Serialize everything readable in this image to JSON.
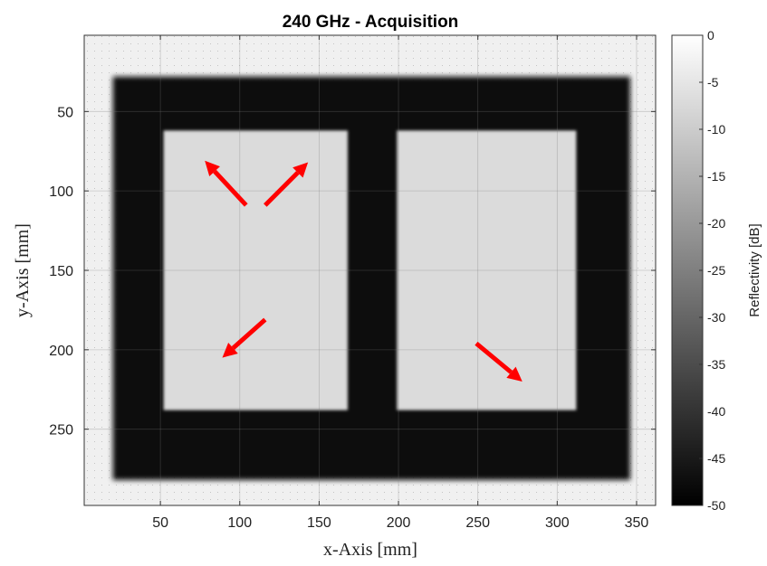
{
  "chart_data": {
    "type": "heatmap",
    "title": "240 GHz - Acquisition",
    "xlabel": "x-Axis [mm]",
    "ylabel": "y-Axis [mm]",
    "xlim": [
      2,
      362
    ],
    "ylim": [
      298,
      2
    ],
    "y_reversed": true,
    "xticks": [
      50,
      100,
      150,
      200,
      250,
      300,
      350
    ],
    "yticks": [
      50,
      100,
      150,
      200,
      250
    ],
    "grid": true,
    "colormap": "gray",
    "colorbar": {
      "label": "Reflectivity [dB]",
      "range": [
        -50,
        0
      ],
      "ticks": [
        0,
        -5,
        -10,
        -15,
        -20,
        -25,
        -30,
        -35,
        -40,
        -45,
        -50
      ]
    },
    "background_level_db": -3,
    "regions": [
      {
        "name": "outer frame",
        "x": [
          20,
          346
        ],
        "y": [
          28,
          282
        ],
        "level_db": -47
      },
      {
        "name": "left opening",
        "x": [
          52,
          168
        ],
        "y": [
          62,
          238
        ],
        "level_db": -7
      },
      {
        "name": "right opening",
        "x": [
          199,
          312
        ],
        "y": [
          62,
          238
        ],
        "level_db": -7
      }
    ],
    "annotations": [
      {
        "type": "arrow",
        "color": "#ff0000",
        "from": [
          104,
          109
        ],
        "to": [
          78,
          81
        ]
      },
      {
        "type": "arrow",
        "color": "#ff0000",
        "from": [
          116,
          109
        ],
        "to": [
          143,
          82
        ]
      },
      {
        "type": "arrow",
        "color": "#ff0000",
        "from": [
          116,
          181
        ],
        "to": [
          89,
          205
        ]
      },
      {
        "type": "arrow",
        "color": "#ff0000",
        "from": [
          249,
          196
        ],
        "to": [
          278,
          220
        ]
      }
    ]
  }
}
